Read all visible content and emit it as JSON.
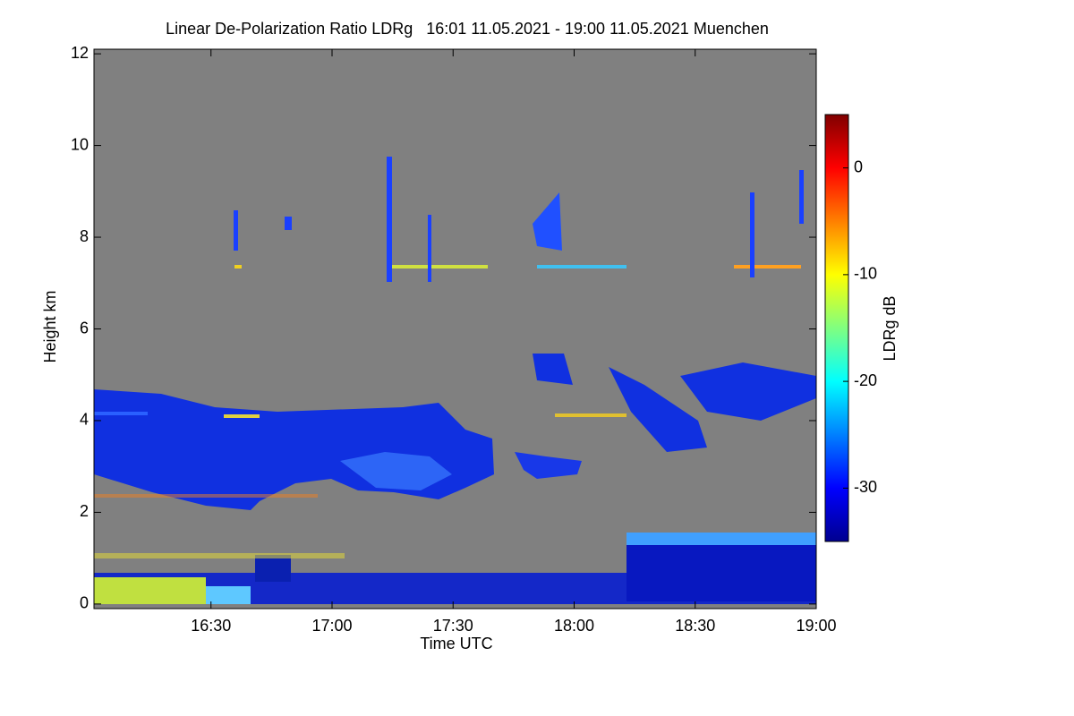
{
  "chart_data": {
    "type": "heatmap",
    "title": "Linear De-Polarization Ratio LDRg   16:01 11.05.2021 - 19:00 11.05.2021 Muenchen",
    "x_label": "Time UTC",
    "y_label": "Height km",
    "colorbar_label": "LDRg dB",
    "xlim": [
      "16:01",
      "19:00"
    ],
    "xticks": [
      "16:30",
      "17:00",
      "17:30",
      "18:00",
      "18:30",
      "19:00"
    ],
    "ylim": [
      -0.1,
      12.1
    ],
    "yticks": [
      0,
      2,
      4,
      6,
      8,
      10,
      12
    ],
    "zlim": [
      -35,
      5
    ],
    "zticks": [
      0,
      -10,
      -20,
      -30
    ],
    "colormap": "jet",
    "background": "#808080"
  }
}
